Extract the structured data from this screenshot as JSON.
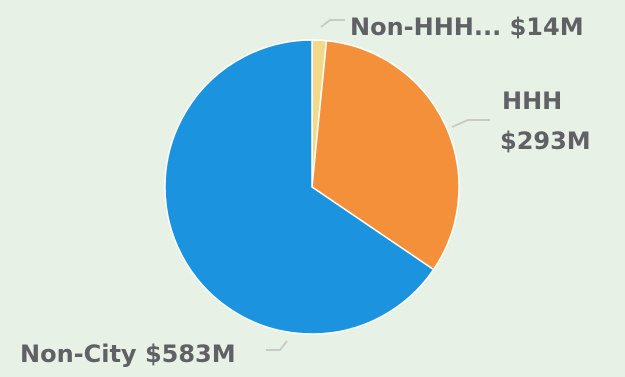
{
  "chart_data": {
    "type": "pie",
    "slices": [
      {
        "label": "Non-HHH...",
        "display_value": "$14M",
        "value": 14,
        "color": "#f3d98a"
      },
      {
        "label": "HHH",
        "display_value": "$293M",
        "value": 293,
        "color": "#f5903a"
      },
      {
        "label": "Non-City",
        "display_value": "$583M",
        "value": 583,
        "color": "#1c93df"
      }
    ]
  }
}
